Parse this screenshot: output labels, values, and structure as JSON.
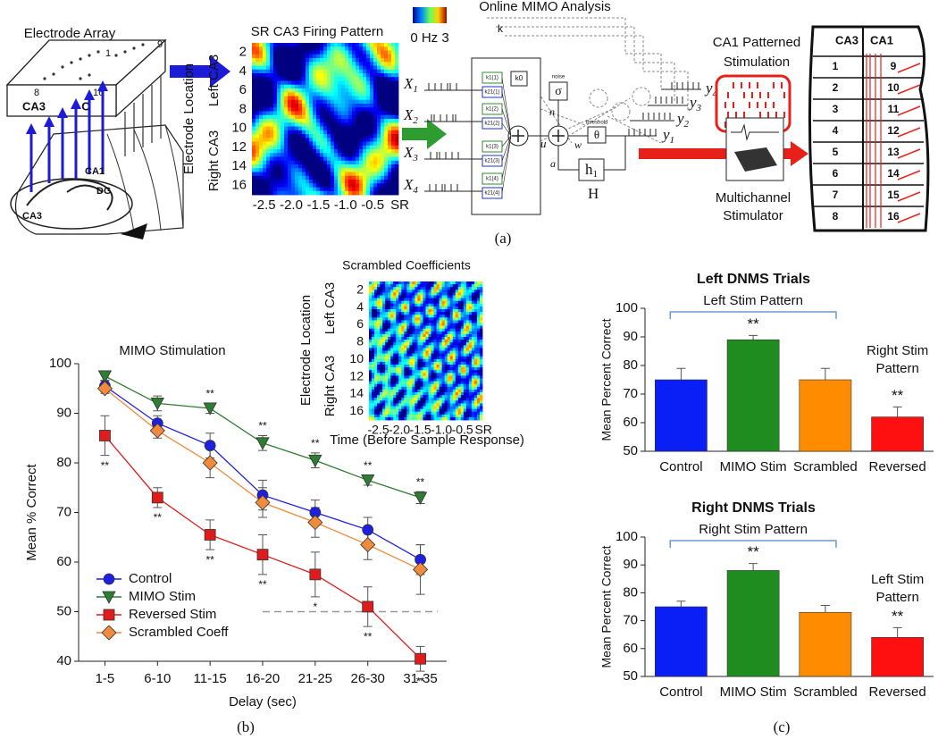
{
  "panel_a": {
    "label": "(a)",
    "electrode_array": {
      "title": "Electrode Array",
      "first_row": "1",
      "last_row": "9",
      "first_col": "8",
      "last_col": "16",
      "box_label": "CA3",
      "box_label2": "C",
      "hippocampus": [
        "CA1",
        "DG",
        "CA3"
      ]
    },
    "firing_pattern": {
      "title": "SR CA3 Firing Pattern",
      "colorbar": "0 Hz 3",
      "y_label": "Electrode Location",
      "left": "Left CA3",
      "right": "Right CA3",
      "yticks": [
        "2",
        "4",
        "6",
        "8",
        "10",
        "12",
        "14",
        "16"
      ],
      "xticks": [
        "-2.5",
        "-2.0",
        "-1.5",
        "-1.0",
        "-0.5",
        "SR"
      ]
    },
    "mimo": {
      "title": "Online MIMO Analysis",
      "inputs": [
        {
          "symbol": "X",
          "index": "1"
        },
        {
          "symbol": "X",
          "index": "2"
        },
        {
          "symbol": "X",
          "index": "3"
        },
        {
          "symbol": "X",
          "index": "4"
        }
      ],
      "kernels": [
        [
          "k1(1)",
          "k21(1)"
        ],
        [
          "k1(2)",
          "k21(2)"
        ],
        [
          "k1(3)",
          "k21(3)"
        ],
        [
          "k1(4)",
          "k21(4)"
        ]
      ],
      "k": "k",
      "k0": "k0",
      "noise": "noise",
      "sigma": "σ",
      "n": "n",
      "u": "u",
      "w": "w",
      "threshold": "threshold",
      "theta": "θ",
      "a": "a",
      "feedback": {
        "symbol": "h",
        "index": "1"
      },
      "H": "H",
      "outputs": [
        {
          "symbol": "y",
          "index": "1"
        },
        {
          "symbol": "y",
          "index": "2"
        },
        {
          "symbol": "y",
          "index": "3"
        },
        {
          "symbol": "y",
          "index": "4"
        }
      ]
    },
    "stimulation": {
      "title": [
        "CA1 Patterned",
        "Stimulation"
      ],
      "stimulator": [
        "Multichannel",
        "Stimulator"
      ]
    },
    "map": {
      "header": [
        "CA3",
        "CA1"
      ],
      "rows": [
        [
          "1",
          "9"
        ],
        [
          "2",
          "10"
        ],
        [
          "3",
          "11"
        ],
        [
          "4",
          "12"
        ],
        [
          "5",
          "13"
        ],
        [
          "6",
          "14"
        ],
        [
          "7",
          "15"
        ],
        [
          "8",
          "16"
        ]
      ]
    }
  },
  "panel_b": {
    "label": "(b)",
    "inset": {
      "title": "Scrambled Coefficients",
      "y_label": "Electrode Location",
      "left": "Left CA3",
      "right": "Right CA3",
      "yticks": [
        "2",
        "4",
        "6",
        "8",
        "10",
        "12",
        "14",
        "16"
      ],
      "xticks": [
        "-2.5",
        "-2.0",
        "-1.5",
        "-1.0",
        "-0.5",
        "SR"
      ],
      "x_label": "Time (Before Sample Response)"
    }
  },
  "panel_c": {
    "label": "(c)"
  },
  "chart_data": [
    {
      "type": "line",
      "title": "MIMO Stimulation",
      "x_label": "Delay (sec)",
      "y_label": "Mean % Correct",
      "categories": [
        "1-5",
        "6-10",
        "11-15",
        "16-20",
        "21-25",
        "26-30",
        "31-35"
      ],
      "ylim": [
        40,
        100
      ],
      "yticks": [
        40,
        50,
        60,
        70,
        80,
        90,
        100
      ],
      "hline": 50,
      "legend": "bottom-left",
      "series": [
        {
          "name": "Control",
          "color": "#1f1fe0",
          "marker": "circle",
          "values": [
            95.5,
            88,
            83.5,
            73.5,
            70,
            66.5,
            60.5
          ],
          "errors": [
            1,
            1.5,
            2.5,
            3,
            2.5,
            2.5,
            3
          ]
        },
        {
          "name": "MIMO Stim",
          "color": "#2e7d32",
          "marker": "triangle",
          "values": [
            97.5,
            92,
            91,
            84,
            80.5,
            76.5,
            73
          ],
          "errors": [
            0.8,
            1.5,
            1,
            1.5,
            1.5,
            1,
            1.2
          ],
          "significance": [
            null,
            null,
            "**",
            "**",
            "**",
            "**",
            "**"
          ],
          "significance_position": "above"
        },
        {
          "name": "Reversed Stim",
          "color": "#e01b1b",
          "marker": "square",
          "values": [
            85.5,
            73,
            65.5,
            61.5,
            57.5,
            51,
            40.5
          ],
          "errors": [
            4,
            2,
            3,
            4,
            4.5,
            4,
            2.5
          ],
          "significance": [
            "**",
            "**",
            "**",
            "**",
            "*",
            "**",
            "**"
          ],
          "significance_position": "below"
        },
        {
          "name": "Scrambled Coeff",
          "color": "#f08a3c",
          "marker": "diamond",
          "values": [
            95,
            86.5,
            80,
            72,
            68,
            63.5,
            58.5
          ],
          "errors": [
            1,
            1.5,
            3,
            3,
            3,
            3,
            5
          ]
        }
      ]
    },
    {
      "type": "bar",
      "title": "Left DNMS Trials",
      "y_label": "Mean Percent Correct",
      "categories": [
        "Control",
        "MIMO Stim",
        "Scrambled",
        "Reversed"
      ],
      "values": [
        75,
        89,
        75,
        62
      ],
      "errors": [
        4,
        1.5,
        4,
        3.5
      ],
      "colors": [
        "#0a1ff5",
        "#1e8c1e",
        "#ff8c00",
        "#ff1010"
      ],
      "significance": [
        null,
        "**",
        null,
        "**"
      ],
      "bracket_label": "Left Stim Pattern",
      "side_label": [
        "Right Stim",
        "Pattern"
      ],
      "ylim": [
        50,
        100
      ],
      "yticks": [
        50,
        60,
        70,
        80,
        90,
        100
      ]
    },
    {
      "type": "bar",
      "title": "Right DNMS Trials",
      "y_label": "Mean Percent Correct",
      "categories": [
        "Control",
        "MIMO Stim",
        "Scrambled",
        "Reversed"
      ],
      "values": [
        75,
        88,
        73,
        64
      ],
      "errors": [
        2,
        2.5,
        2.5,
        3.5
      ],
      "colors": [
        "#0a1ff5",
        "#1e8c1e",
        "#ff8c00",
        "#ff1010"
      ],
      "significance": [
        null,
        "**",
        null,
        "**"
      ],
      "bracket_label": "Right Stim Pattern",
      "side_label": [
        "Left Stim",
        "Pattern"
      ],
      "ylim": [
        50,
        100
      ],
      "yticks": [
        50,
        60,
        70,
        80,
        90,
        100
      ]
    }
  ]
}
